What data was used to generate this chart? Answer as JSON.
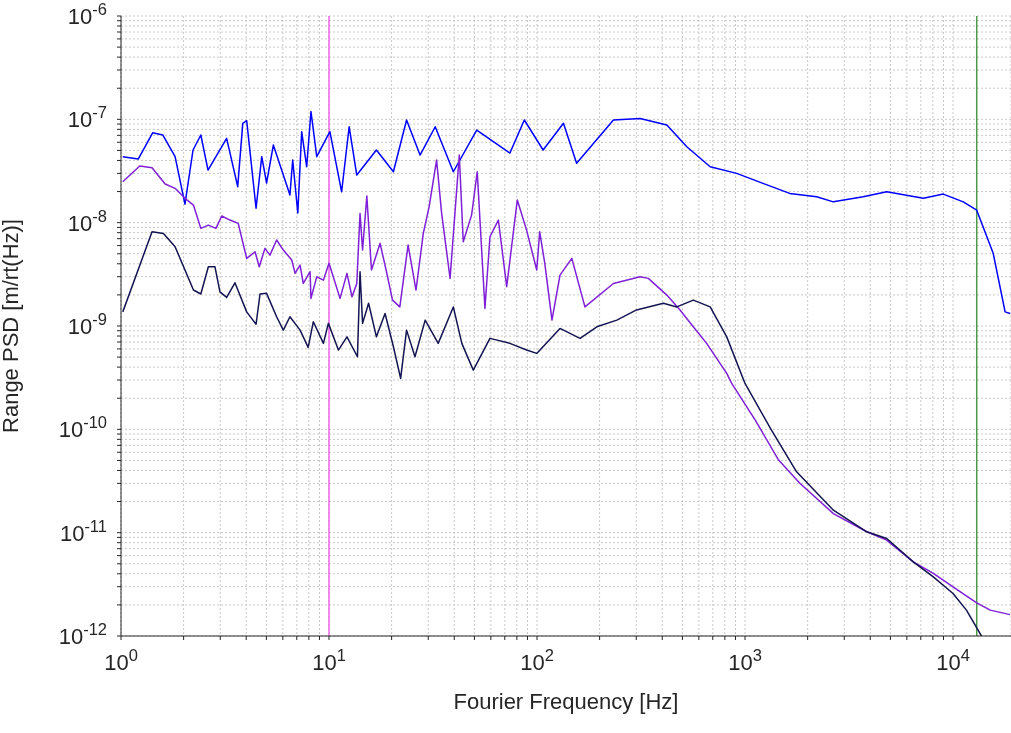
{
  "chart_data": {
    "type": "line",
    "xlabel": "Fourier Frequency [Hz]",
    "ylabel": "Range PSD [m/rt(Hz)]",
    "log": "xy",
    "grid": true,
    "legend": false,
    "xlim": [
      1,
      19000
    ],
    "xticks": [
      {
        "value": 1,
        "label": "10$^{0}$"
      },
      {
        "value": 2,
        "label": null
      },
      {
        "value": 3,
        "label": null
      },
      {
        "value": 4,
        "label": null
      },
      {
        "value": 5,
        "label": null
      },
      {
        "value": 6,
        "label": null
      },
      {
        "value": 7,
        "label": null
      },
      {
        "value": 8,
        "label": null
      },
      {
        "value": 9,
        "label": null
      },
      {
        "value": 10,
        "label": "10$^{1}$"
      },
      {
        "value": 20,
        "label": null
      },
      {
        "value": 30,
        "label": null
      },
      {
        "value": 40,
        "label": null
      },
      {
        "value": 50,
        "label": null
      },
      {
        "value": 60,
        "label": null
      },
      {
        "value": 70,
        "label": null
      },
      {
        "value": 80,
        "label": null
      },
      {
        "value": 90,
        "label": null
      },
      {
        "value": 100,
        "label": "10$^{2}$"
      },
      {
        "value": 200,
        "label": null
      },
      {
        "value": 300,
        "label": null
      },
      {
        "value": 400,
        "label": null
      },
      {
        "value": 500,
        "label": null
      },
      {
        "value": 600,
        "label": null
      },
      {
        "value": 700,
        "label": null
      },
      {
        "value": 800,
        "label": null
      },
      {
        "value": 900,
        "label": null
      },
      {
        "value": 1000,
        "label": "10$^{3}$"
      },
      {
        "value": 2000,
        "label": null
      },
      {
        "value": 3000,
        "label": null
      },
      {
        "value": 4000,
        "label": null
      },
      {
        "value": 5000,
        "label": null
      },
      {
        "value": 6000,
        "label": null
      },
      {
        "value": 7000,
        "label": null
      },
      {
        "value": 8000,
        "label": null
      },
      {
        "value": 9000,
        "label": null
      },
      {
        "value": 10000,
        "label": "10$^{4}$"
      }
    ],
    "ylim": [
      1e-12,
      1e-06
    ],
    "yticks": [
      {
        "value": 1e-12,
        "label": "10$^{-12}$"
      },
      {
        "value": 2e-12,
        "label": null
      },
      {
        "value": 3e-12,
        "label": null
      },
      {
        "value": 4e-12,
        "label": null
      },
      {
        "value": 5e-12,
        "label": null
      },
      {
        "value": 6e-12,
        "label": null
      },
      {
        "value": 7e-12,
        "label": null
      },
      {
        "value": 8e-12,
        "label": null
      },
      {
        "value": 9e-12,
        "label": null
      },
      {
        "value": 1e-11,
        "label": "10$^{-11}$"
      },
      {
        "value": 2e-11,
        "label": null
      },
      {
        "value": 3e-11,
        "label": null
      },
      {
        "value": 4e-11,
        "label": null
      },
      {
        "value": 5e-11,
        "label": null
      },
      {
        "value": 6e-11,
        "label": null
      },
      {
        "value": 7e-11,
        "label": null
      },
      {
        "value": 8e-11,
        "label": null
      },
      {
        "value": 9e-11,
        "label": null
      },
      {
        "value": 1e-10,
        "label": "10$^{-10}$"
      },
      {
        "value": 2e-10,
        "label": null
      },
      {
        "value": 3e-10,
        "label": null
      },
      {
        "value": 4e-10,
        "label": null
      },
      {
        "value": 5e-10,
        "label": null
      },
      {
        "value": 6e-10,
        "label": null
      },
      {
        "value": 7e-10,
        "label": null
      },
      {
        "value": 8e-10,
        "label": null
      },
      {
        "value": 9e-10,
        "label": null
      },
      {
        "value": 1e-09,
        "label": "10$^{-9}$"
      },
      {
        "value": 2e-09,
        "label": null
      },
      {
        "value": 3e-09,
        "label": null
      },
      {
        "value": 4e-09,
        "label": null
      },
      {
        "value": 5e-09,
        "label": null
      },
      {
        "value": 6e-09,
        "label": null
      },
      {
        "value": 7e-09,
        "label": null
      },
      {
        "value": 8e-09,
        "label": null
      },
      {
        "value": 9e-09,
        "label": null
      },
      {
        "value": 1e-08,
        "label": "10$^{-8}$"
      },
      {
        "value": 2e-08,
        "label": null
      },
      {
        "value": 3e-08,
        "label": null
      },
      {
        "value": 4e-08,
        "label": null
      },
      {
        "value": 5e-08,
        "label": null
      },
      {
        "value": 6e-08,
        "label": null
      },
      {
        "value": 7e-08,
        "label": null
      },
      {
        "value": 8e-08,
        "label": null
      },
      {
        "value": 9e-08,
        "label": null
      },
      {
        "value": 1e-07,
        "label": "10$^{-7}$"
      },
      {
        "value": 2e-07,
        "label": null
      },
      {
        "value": 3e-07,
        "label": null
      },
      {
        "value": 4e-07,
        "label": null
      },
      {
        "value": 5e-07,
        "label": null
      },
      {
        "value": 6e-07,
        "label": null
      },
      {
        "value": 7e-07,
        "label": null
      },
      {
        "value": 8e-07,
        "label": null
      },
      {
        "value": 9e-07,
        "label": null
      },
      {
        "value": 1e-06,
        "label": "10$^{-6}$"
      }
    ],
    "ref_lines": [
      {
        "axis": "x",
        "value": 10,
        "color": "#ee66ee"
      },
      {
        "axis": "x",
        "value": 13000,
        "color": "#4a9a4a"
      }
    ],
    "series": [
      {
        "color": "#0000ff",
        "x": [
          1.02,
          1.21,
          1.42,
          1.59,
          1.82,
          2.03,
          2.22,
          2.42,
          2.62,
          3.22,
          3.64,
          3.85,
          4.02,
          4.46,
          4.75,
          5.01,
          5.4,
          6.03,
          6.49,
          6.69,
          7.08,
          7.39,
          7.81,
          8.19,
          8.73,
          10.1,
          11.5,
          12.5,
          13.6,
          16.9,
          20.4,
          23.6,
          27.4,
          32.4,
          39.6,
          51.3,
          74.1,
          86.9,
          107,
          134,
          155,
          233,
          313,
          421,
          525,
          680,
          912,
          1220,
          1640,
          2210,
          2660,
          3700,
          4800,
          7200,
          8980,
          11200,
          13000,
          15600,
          17800,
          18800
        ],
        "values": [
          4.35e-08,
          4.13e-08,
          7.4e-08,
          7.05e-08,
          4.35e-08,
          1.51e-08,
          5.05e-08,
          7.05e-08,
          3.23e-08,
          6.55e-08,
          2.23e-08,
          9.15e-08,
          9.7e-08,
          1.38e-08,
          4.35e-08,
          2.42e-08,
          5.64e-08,
          2.89e-08,
          1.85e-08,
          4.04e-08,
          1.24e-08,
          7.59e-08,
          3.48e-08,
          1.19e-07,
          4.35e-08,
          7.59e-08,
          1.99e-08,
          8.48e-08,
          2.89e-08,
          5.05e-08,
          3.11e-08,
          9.85e-08,
          4.51e-08,
          8.48e-08,
          3.11e-08,
          7.87e-08,
          4.72e-08,
          9.85e-08,
          5.05e-08,
          9.15e-08,
          3.75e-08,
          9.85e-08,
          1.02e-07,
          8.81e-08,
          5.43e-08,
          3.48e-08,
          3e-08,
          2.4e-08,
          1.92e-08,
          1.78e-08,
          1.59e-08,
          1.78e-08,
          1.99e-08,
          1.72e-08,
          1.89e-08,
          1.59e-08,
          1.32e-08,
          5.05e-09,
          1.37e-09,
          1.32e-09
        ]
      },
      {
        "color": "#7f20d8",
        "x": [
          1.02,
          1.23,
          1.41,
          1.63,
          1.82,
          2.03,
          2.23,
          2.42,
          2.63,
          2.86,
          3.05,
          3.34,
          3.66,
          4.02,
          4.41,
          4.62,
          4.92,
          5.2,
          5.6,
          6.03,
          6.62,
          6.87,
          7.26,
          7.52,
          8.11,
          8.19,
          8.73,
          9.4,
          10.0,
          11.3,
          12.2,
          12.9,
          13.6,
          14.1,
          14.5,
          15.2,
          16.0,
          17.6,
          18.9,
          20.2,
          21.9,
          24.0,
          26.2,
          28.4,
          30.3,
          32.9,
          34.8,
          38.2,
          42.3,
          44.2,
          48.5,
          51.6,
          56.2,
          59.4,
          65.2,
          71.5,
          80.4,
          89.1,
          99.7,
          103,
          109,
          118,
          129,
          147,
          170,
          233,
          313,
          343,
          421,
          487,
          564,
          654,
          817,
          863,
          1120,
          1450,
          1840,
          2660,
          3850,
          4800,
          6440,
          8040,
          10000,
          13000,
          15100,
          18800
        ],
        "values": [
          2.49e-08,
          3.53e-08,
          3.4e-08,
          2.37e-08,
          2.15e-08,
          1.72e-08,
          1.48e-08,
          8.81e-09,
          9.48e-09,
          8.81e-09,
          1.16e-08,
          1.06e-08,
          9.84e-09,
          4.51e-09,
          5.23e-09,
          3.74e-09,
          5.64e-09,
          4.85e-09,
          6.79e-09,
          5.43e-09,
          4.35e-09,
          3.23e-09,
          3.89e-09,
          2.58e-09,
          3.35e-09,
          1.85e-09,
          2.99e-09,
          2.78e-09,
          4.04e-09,
          1.85e-09,
          3.23e-09,
          1.92e-09,
          2.58e-09,
          1.23e-08,
          5.43e-09,
          1.81e-08,
          3.48e-09,
          6.31e-09,
          3.35e-09,
          1.78e-09,
          1.53e-09,
          6.07e-09,
          2.23e-09,
          7.87e-09,
          1.43e-08,
          4.04e-08,
          1.23e-08,
          2.89e-09,
          4.51e-08,
          6.53e-09,
          1.19e-08,
          3.11e-08,
          1.48e-09,
          7.31e-09,
          1.06e-08,
          2.4e-09,
          1.66e-08,
          8.47e-09,
          3.48e-09,
          8.17e-09,
          4.04e-09,
          1.14e-09,
          3.11e-09,
          4.51e-09,
          1.53e-09,
          2.58e-09,
          2.99e-09,
          2.89e-09,
          1.99e-09,
          1.43e-09,
          9.82e-10,
          6.79e-10,
          3.48e-10,
          2.78e-10,
          1.23e-10,
          5.04e-11,
          2.99e-11,
          1.53e-11,
          1.02e-11,
          8.46e-12,
          5.21e-12,
          4.03e-12,
          2.99e-12,
          2.09e-12,
          1.78e-12,
          1.61e-12
        ]
      },
      {
        "color": "#141452",
        "x": [
          1.02,
          1.41,
          1.6,
          1.82,
          2.23,
          2.42,
          2.63,
          2.83,
          2.99,
          3.22,
          3.53,
          4.02,
          4.46,
          4.66,
          5.01,
          5.6,
          6.03,
          6.49,
          7.26,
          7.94,
          8.41,
          9.4,
          9.93,
          11.1,
          12.2,
          13.7,
          14.1,
          14.5,
          15.5,
          16.9,
          18.6,
          20.4,
          22.1,
          23.6,
          25.9,
          29.0,
          33.5,
          39.6,
          43.5,
          49.4,
          59.4,
          74.1,
          89.1,
          99.7,
          129,
          161,
          194,
          242,
          301,
          405,
          470,
          564,
          680,
          817,
          1000,
          1340,
          1770,
          2660,
          3850,
          4800,
          6440,
          8040,
          10000,
          11600,
          13700
        ],
        "values": [
          1.37e-09,
          8.17e-09,
          7.87e-09,
          5.85e-09,
          2.23e-09,
          2.04e-09,
          3.74e-09,
          3.74e-09,
          2.14e-09,
          1.89e-09,
          2.62e-09,
          1.37e-09,
          1.04e-09,
          2.04e-09,
          2.07e-09,
          1.23e-09,
          9.12e-10,
          1.23e-09,
          9.12e-10,
          6.21e-10,
          1.1e-09,
          6.79e-10,
          1.06e-09,
          5.85e-10,
          7.85e-10,
          5.04e-10,
          3.35e-09,
          1.06e-09,
          1.66e-09,
          7.85e-10,
          1.32e-09,
          6.3e-10,
          3.11e-10,
          9.12e-10,
          5.04e-10,
          1.14e-09,
          6.79e-10,
          1.53e-09,
          6.79e-10,
          3.74e-10,
          7.59e-10,
          6.79e-10,
          5.85e-10,
          5.43e-10,
          9.48e-10,
          7.59e-10,
          9.82e-10,
          1.14e-09,
          1.43e-09,
          1.66e-09,
          1.53e-09,
          1.78e-09,
          1.53e-09,
          7.85e-10,
          2.78e-10,
          9.82e-11,
          3.88e-11,
          1.65e-11,
          1.02e-11,
          8.79e-12,
          5.21e-12,
          3.73e-12,
          2.58e-12,
          1.78e-12,
          1e-12
        ]
      }
    ]
  }
}
